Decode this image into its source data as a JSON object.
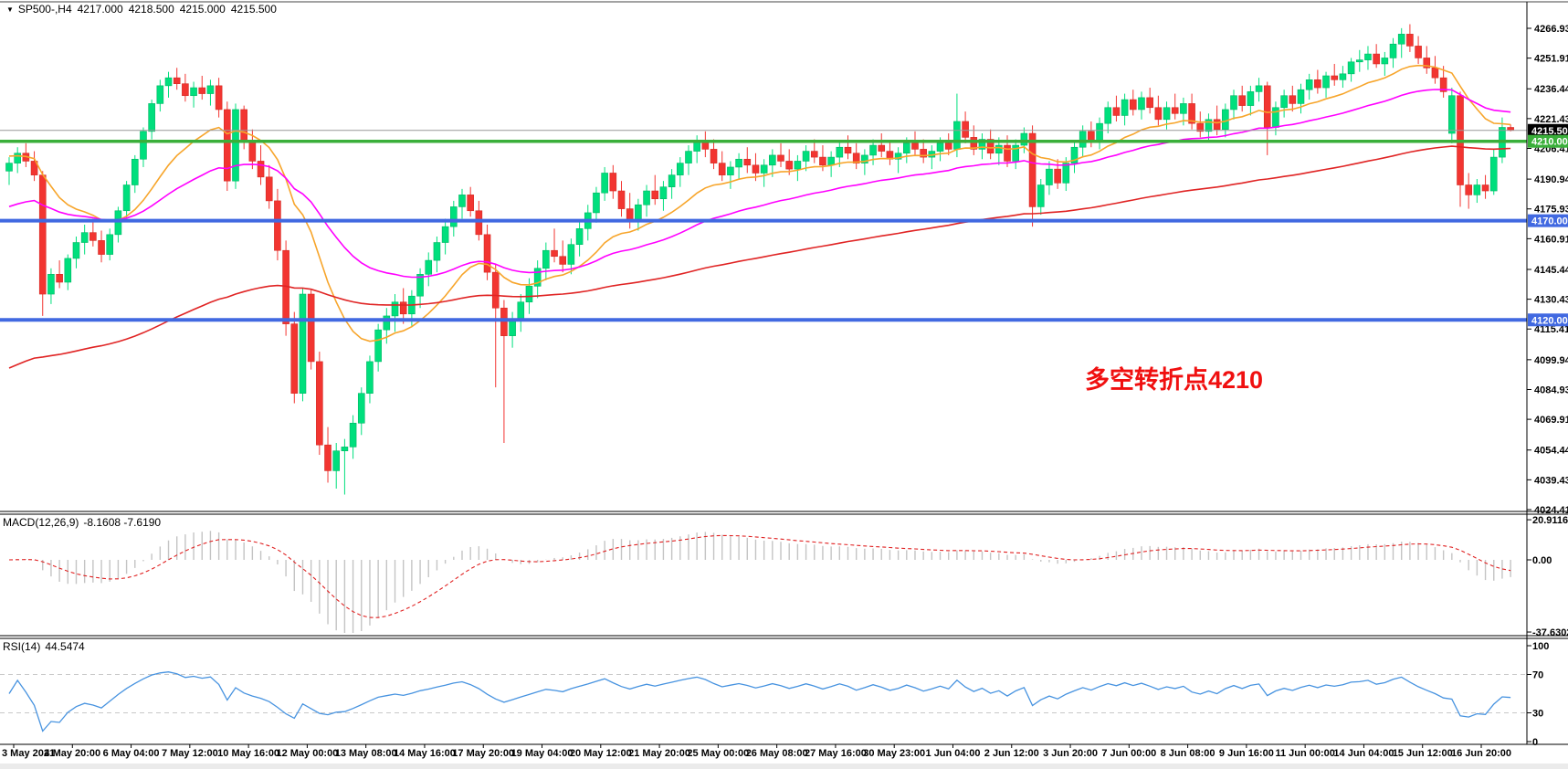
{
  "window": {
    "background": "#FFFFFF"
  },
  "header": {
    "dropdown_icon": "▼",
    "symbol": "SP500-,H4",
    "open": "4217.000",
    "high": "4218.500",
    "low": "4215.000",
    "close": "4215.500"
  },
  "annotation": {
    "text": "多空转折点4210",
    "color": "#F01010"
  },
  "price_axis": {
    "ticks": [
      {
        "label": "4266.930",
        "value": 4266.93
      },
      {
        "label": "4251.915",
        "value": 4251.915
      },
      {
        "label": "4236.445",
        "value": 4236.445
      },
      {
        "label": "4221.430",
        "value": 4221.43
      },
      {
        "label": "4206.415",
        "value": 4206.415
      },
      {
        "label": "4190.945",
        "value": 4190.945
      },
      {
        "label": "4175.930",
        "value": 4175.93
      },
      {
        "label": "4160.915",
        "value": 4160.915
      },
      {
        "label": "4145.445",
        "value": 4145.445
      },
      {
        "label": "4130.430",
        "value": 4130.43
      },
      {
        "label": "4115.415",
        "value": 4115.415
      },
      {
        "label": "4099.945",
        "value": 4099.945
      },
      {
        "label": "4084.930",
        "value": 4084.93
      },
      {
        "label": "4069.915",
        "value": 4069.915
      },
      {
        "label": "4054.445",
        "value": 4054.445
      },
      {
        "label": "4039.430",
        "value": 4039.43
      },
      {
        "label": "4024.415",
        "value": 4024.415
      }
    ],
    "current_price": {
      "label": "4215.500",
      "value": 4215.5,
      "bg": "#000000",
      "fg": "#FFFFFF"
    },
    "levels": [
      {
        "label": "4210.000",
        "value": 4210,
        "bg": "#3AAF3A",
        "fg": "#FFFFFF"
      },
      {
        "label": "4170.000",
        "value": 4170,
        "bg": "#4169E1",
        "fg": "#FFFFFF"
      },
      {
        "label": "4120.000",
        "value": 4120,
        "bg": "#4169E1",
        "fg": "#FFFFFF"
      }
    ]
  },
  "time_axis": {
    "labels": [
      "3 May 2021",
      "4 May 20:00",
      "6 May 04:00",
      "7 May 12:00",
      "10 May 16:00",
      "12 May 00:00",
      "13 May 08:00",
      "14 May 16:00",
      "17 May 20:00",
      "19 May 04:00",
      "20 May 12:00",
      "21 May 20:00",
      "25 May 00:00",
      "26 May 08:00",
      "27 May 16:00",
      "30 May 23:00",
      "1 Jun 04:00",
      "2 Jun 12:00",
      "3 Jun 20:00",
      "7 Jun 00:00",
      "8 Jun 08:00",
      "9 Jun 16:00",
      "11 Jun 00:00",
      "14 Jun 04:00",
      "15 Jun 12:00",
      "16 Jun 20:00"
    ]
  },
  "indicators": {
    "macd": {
      "name": "MACD(12,26,9)",
      "values": "-8.1608 -7.6190",
      "macd_value": -8.1608,
      "signal_value": -7.619,
      "axis": [
        {
          "label": "20.9116",
          "value": 20.9116
        },
        {
          "label": "0.00",
          "value": 0
        },
        {
          "label": "-37.6302",
          "value": -37.6302
        }
      ],
      "histogram_color": "#C4C4C4",
      "signal_color": "#E02020"
    },
    "rsi": {
      "name": "RSI(14)",
      "value": "44.5474",
      "period": 14,
      "axis": [
        {
          "label": "100",
          "value": 100
        },
        {
          "label": "70",
          "value": 70
        },
        {
          "label": "30",
          "value": 30
        },
        {
          "label": "0",
          "value": 0
        }
      ],
      "levels": [
        70,
        30
      ],
      "line_color": "#4793E0",
      "level_color": "#C8C8C8"
    }
  },
  "chart_data": {
    "type": "candlestick",
    "symbol": "SP500-",
    "timeframe": "H4",
    "title": "SP500- H4 candlestick chart with MACD(12,26,9) and RSI(14)",
    "y_range": [
      4024.415,
      4276.0
    ],
    "bull_color": "#00DF7D",
    "bear_color": "#F23531",
    "horizontal_lines": [
      {
        "value": 4215.5,
        "color": "#999999",
        "type": "current-price",
        "width": 1
      },
      {
        "value": 4210,
        "color": "#3AAF3A",
        "type": "pivot",
        "width": 3.5
      },
      {
        "value": 4170,
        "color": "#4169E1",
        "type": "support",
        "width": 4
      },
      {
        "value": 4120,
        "color": "#4169E1",
        "type": "support",
        "width": 4
      }
    ],
    "moving_averages": [
      {
        "period": 16,
        "color": "#F7A52B",
        "seed": 4203
      },
      {
        "period": 40,
        "color": "#FF00FF",
        "seed": 4176
      },
      {
        "period": 120,
        "color": "#E02424",
        "seed": 4094
      }
    ],
    "candles": [
      [
        4195,
        4202,
        4188,
        4199
      ],
      [
        4199,
        4207,
        4194,
        4204
      ],
      [
        4204,
        4209,
        4197,
        4200
      ],
      [
        4200,
        4205,
        4190,
        4193
      ],
      [
        4193,
        4195,
        4122,
        4133
      ],
      [
        4133,
        4146,
        4128,
        4143
      ],
      [
        4143,
        4150,
        4136,
        4139
      ],
      [
        4139,
        4153,
        4135,
        4151
      ],
      [
        4151,
        4162,
        4146,
        4159
      ],
      [
        4159,
        4168,
        4153,
        4164
      ],
      [
        4164,
        4171,
        4157,
        4160
      ],
      [
        4160,
        4165,
        4149,
        4153
      ],
      [
        4153,
        4166,
        4150,
        4163
      ],
      [
        4163,
        4177,
        4159,
        4175
      ],
      [
        4175,
        4190,
        4171,
        4188
      ],
      [
        4188,
        4203,
        4184,
        4201
      ],
      [
        4201,
        4217,
        4197,
        4215
      ],
      [
        4215,
        4231,
        4211,
        4229
      ],
      [
        4229,
        4241,
        4225,
        4238
      ],
      [
        4238,
        4245,
        4232,
        4242
      ],
      [
        4242,
        4247,
        4236,
        4239
      ],
      [
        4239,
        4244,
        4230,
        4233
      ],
      [
        4233,
        4240,
        4227,
        4237
      ],
      [
        4237,
        4243,
        4231,
        4234
      ],
      [
        4234,
        4241,
        4228,
        4238
      ],
      [
        4238,
        4242,
        4222,
        4226
      ],
      [
        4226,
        4230,
        4185,
        4190
      ],
      [
        4190,
        4229,
        4186,
        4226
      ],
      [
        4226,
        4228,
        4206,
        4210
      ],
      [
        4210,
        4216,
        4196,
        4200
      ],
      [
        4200,
        4208,
        4188,
        4192
      ],
      [
        4192,
        4198,
        4176,
        4180
      ],
      [
        4180,
        4186,
        4150,
        4155
      ],
      [
        4155,
        4160,
        4112,
        4118
      ],
      [
        4118,
        4124,
        4078,
        4083
      ],
      [
        4083,
        4136,
        4079,
        4133
      ],
      [
        4133,
        4135,
        4095,
        4099
      ],
      [
        4099,
        4104,
        4052,
        4057
      ],
      [
        4057,
        4066,
        4038,
        4044
      ],
      [
        4044,
        4058,
        4035,
        4054
      ],
      [
        4054,
        4060,
        4032,
        4056
      ],
      [
        4056,
        4072,
        4050,
        4068
      ],
      [
        4068,
        4086,
        4062,
        4083
      ],
      [
        4083,
        4102,
        4078,
        4099
      ],
      [
        4099,
        4118,
        4094,
        4115
      ],
      [
        4115,
        4126,
        4108,
        4122
      ],
      [
        4122,
        4133,
        4114,
        4129
      ],
      [
        4129,
        4136,
        4118,
        4123
      ],
      [
        4123,
        4135,
        4117,
        4132
      ],
      [
        4132,
        4146,
        4126,
        4143
      ],
      [
        4143,
        4154,
        4137,
        4150
      ],
      [
        4150,
        4162,
        4144,
        4159
      ],
      [
        4159,
        4171,
        4153,
        4167
      ],
      [
        4167,
        4180,
        4162,
        4177
      ],
      [
        4177,
        4186,
        4171,
        4183
      ],
      [
        4183,
        4187,
        4172,
        4175
      ],
      [
        4175,
        4180,
        4160,
        4163
      ],
      [
        4163,
        4168,
        4140,
        4144
      ],
      [
        4144,
        4148,
        4086,
        4126
      ],
      [
        4126,
        4130,
        4058,
        4112
      ],
      [
        4112,
        4124,
        4106,
        4120
      ],
      [
        4120,
        4133,
        4114,
        4129
      ],
      [
        4129,
        4141,
        4123,
        4137
      ],
      [
        4137,
        4150,
        4131,
        4146
      ],
      [
        4146,
        4159,
        4140,
        4155
      ],
      [
        4155,
        4166,
        4149,
        4152
      ],
      [
        4152,
        4160,
        4144,
        4148
      ],
      [
        4148,
        4161,
        4143,
        4158
      ],
      [
        4158,
        4170,
        4152,
        4166
      ],
      [
        4166,
        4178,
        4160,
        4174
      ],
      [
        4174,
        4187,
        4169,
        4184
      ],
      [
        4184,
        4197,
        4180,
        4194
      ],
      [
        4194,
        4198,
        4181,
        4185
      ],
      [
        4185,
        4190,
        4172,
        4176
      ],
      [
        4176,
        4184,
        4166,
        4170
      ],
      [
        4170,
        4181,
        4165,
        4178
      ],
      [
        4178,
        4188,
        4172,
        4185
      ],
      [
        4185,
        4193,
        4178,
        4181
      ],
      [
        4181,
        4190,
        4175,
        4187
      ],
      [
        4187,
        4196,
        4181,
        4193
      ],
      [
        4193,
        4202,
        4187,
        4199
      ],
      [
        4199,
        4208,
        4193,
        4205
      ],
      [
        4205,
        4213,
        4199,
        4210
      ],
      [
        4210,
        4215,
        4202,
        4206
      ],
      [
        4206,
        4211,
        4196,
        4199
      ],
      [
        4199,
        4205,
        4190,
        4193
      ],
      [
        4193,
        4200,
        4186,
        4197
      ],
      [
        4197,
        4204,
        4191,
        4201
      ],
      [
        4201,
        4207,
        4194,
        4198
      ],
      [
        4198,
        4204,
        4190,
        4194
      ],
      [
        4194,
        4201,
        4187,
        4198
      ],
      [
        4198,
        4206,
        4192,
        4203
      ],
      [
        4203,
        4209,
        4197,
        4200
      ],
      [
        4200,
        4206,
        4193,
        4196
      ],
      [
        4196,
        4203,
        4190,
        4200
      ],
      [
        4200,
        4208,
        4195,
        4205
      ],
      [
        4205,
        4211,
        4199,
        4202
      ],
      [
        4202,
        4208,
        4195,
        4198
      ],
      [
        4198,
        4205,
        4192,
        4202
      ],
      [
        4202,
        4210,
        4197,
        4207
      ],
      [
        4207,
        4213,
        4201,
        4204
      ],
      [
        4204,
        4209,
        4196,
        4199
      ],
      [
        4199,
        4206,
        4193,
        4203
      ],
      [
        4203,
        4211,
        4198,
        4208
      ],
      [
        4208,
        4214,
        4202,
        4205
      ],
      [
        4205,
        4210,
        4198,
        4201
      ],
      [
        4201,
        4207,
        4194,
        4204
      ],
      [
        4204,
        4212,
        4199,
        4209
      ],
      [
        4209,
        4215,
        4203,
        4206
      ],
      [
        4206,
        4211,
        4199,
        4202
      ],
      [
        4202,
        4208,
        4196,
        4205
      ],
      [
        4205,
        4212,
        4200,
        4209
      ],
      [
        4209,
        4214,
        4203,
        4206
      ],
      [
        4206,
        4234,
        4202,
        4220
      ],
      [
        4220,
        4225,
        4209,
        4212
      ],
      [
        4212,
        4218,
        4203,
        4206
      ],
      [
        4206,
        4214,
        4201,
        4211
      ],
      [
        4211,
        4216,
        4201,
        4204
      ],
      [
        4204,
        4212,
        4198,
        4208
      ],
      [
        4208,
        4213,
        4197,
        4200
      ],
      [
        4200,
        4211,
        4196,
        4208
      ],
      [
        4208,
        4217,
        4204,
        4214
      ],
      [
        4214,
        4218,
        4167,
        4177
      ],
      [
        4177,
        4191,
        4173,
        4188
      ],
      [
        4188,
        4200,
        4183,
        4196
      ],
      [
        4196,
        4201,
        4186,
        4189
      ],
      [
        4189,
        4202,
        4185,
        4199
      ],
      [
        4199,
        4210,
        4194,
        4207
      ],
      [
        4207,
        4218,
        4202,
        4215
      ],
      [
        4215,
        4220,
        4207,
        4210
      ],
      [
        4210,
        4222,
        4206,
        4219
      ],
      [
        4219,
        4230,
        4214,
        4227
      ],
      [
        4227,
        4233,
        4220,
        4223
      ],
      [
        4223,
        4234,
        4218,
        4231
      ],
      [
        4231,
        4236,
        4223,
        4226
      ],
      [
        4226,
        4235,
        4221,
        4232
      ],
      [
        4232,
        4237,
        4224,
        4227
      ],
      [
        4227,
        4233,
        4218,
        4221
      ],
      [
        4221,
        4230,
        4216,
        4227
      ],
      [
        4227,
        4234,
        4221,
        4224
      ],
      [
        4224,
        4232,
        4218,
        4229
      ],
      [
        4229,
        4234,
        4216,
        4219
      ],
      [
        4219,
        4225,
        4212,
        4215
      ],
      [
        4215,
        4224,
        4210,
        4221
      ],
      [
        4221,
        4228,
        4213,
        4216
      ],
      [
        4216,
        4229,
        4212,
        4226
      ],
      [
        4226,
        4236,
        4221,
        4233
      ],
      [
        4233,
        4238,
        4225,
        4228
      ],
      [
        4228,
        4238,
        4223,
        4235
      ],
      [
        4235,
        4242,
        4230,
        4238
      ],
      [
        4238,
        4240,
        4203,
        4217
      ],
      [
        4217,
        4230,
        4213,
        4227
      ],
      [
        4227,
        4236,
        4222,
        4233
      ],
      [
        4233,
        4238,
        4225,
        4229
      ],
      [
        4229,
        4239,
        4224,
        4236
      ],
      [
        4236,
        4244,
        4231,
        4241
      ],
      [
        4241,
        4246,
        4234,
        4237
      ],
      [
        4237,
        4245,
        4232,
        4243
      ],
      [
        4243,
        4249,
        4238,
        4241
      ],
      [
        4241,
        4248,
        4237,
        4244
      ],
      [
        4244,
        4252,
        4240,
        4250
      ],
      [
        4250,
        4256,
        4245,
        4251
      ],
      [
        4251,
        4258,
        4246,
        4254
      ],
      [
        4254,
        4259,
        4247,
        4249
      ],
      [
        4249,
        4255,
        4243,
        4252
      ],
      [
        4252,
        4262,
        4247,
        4259
      ],
      [
        4259,
        4267,
        4252,
        4264
      ],
      [
        4264,
        4269,
        4255,
        4258
      ],
      [
        4258,
        4263,
        4249,
        4252
      ],
      [
        4252,
        4258,
        4244,
        4247
      ],
      [
        4247,
        4253,
        4239,
        4242
      ],
      [
        4242,
        4248,
        4232,
        4235
      ],
      [
        4214,
        4237,
        4209,
        4233
      ],
      [
        4233,
        4235,
        4177,
        4188
      ],
      [
        4188,
        4194,
        4176,
        4183
      ],
      [
        4183,
        4191,
        4179,
        4188
      ],
      [
        4188,
        4193,
        4181,
        4185
      ],
      [
        4185,
        4206,
        4183,
        4202
      ],
      [
        4202,
        4222,
        4199,
        4217
      ],
      [
        4217,
        4218.5,
        4215,
        4215.5
      ]
    ]
  }
}
